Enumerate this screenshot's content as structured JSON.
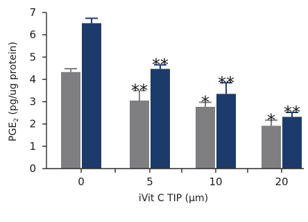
{
  "chart_data": {
    "type": "bar",
    "categories": [
      "0",
      "5",
      "10",
      "20"
    ],
    "series": [
      {
        "color": "#7f7f82",
        "values": [
          4.33,
          3.05,
          2.77,
          1.92
        ],
        "errors": [
          0.15,
          0.45,
          0.2,
          0.25
        ],
        "annotations": [
          "",
          "**",
          "*",
          "*"
        ]
      },
      {
        "color": "#1c3b6a",
        "values": [
          6.52,
          4.47,
          3.35,
          2.32
        ],
        "errors": [
          0.22,
          0.18,
          0.5,
          0.2
        ],
        "annotations": [
          "",
          "**",
          "**",
          "**"
        ]
      }
    ],
    "xlabel": "iVit C TIP (μm)",
    "ylabel_main": "PGE",
    "ylabel_sub": "2",
    "ylabel_rest": " (pg/ug protein)",
    "ylim": [
      0,
      7
    ],
    "yticks": [
      "0",
      "1",
      "2",
      "3",
      "4",
      "5",
      "6",
      "7"
    ],
    "grid": false
  }
}
